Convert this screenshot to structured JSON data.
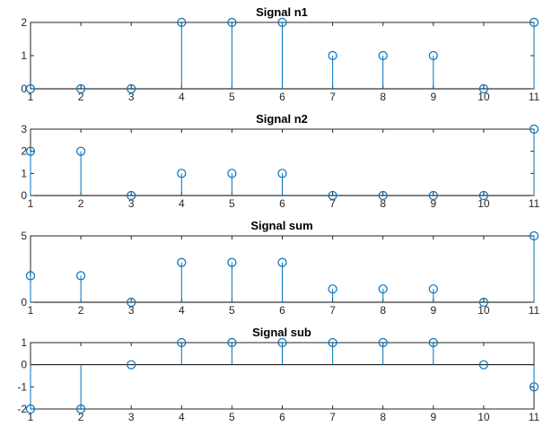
{
  "chart_data": [
    {
      "type": "stem",
      "title": "Signal n1",
      "x": [
        1,
        2,
        3,
        4,
        5,
        6,
        7,
        8,
        9,
        10,
        11
      ],
      "values": [
        0,
        0,
        0,
        2,
        2,
        2,
        1,
        1,
        1,
        0,
        2
      ],
      "xlim": [
        1,
        11
      ],
      "ylim": [
        0,
        2
      ],
      "xticks": [
        1,
        2,
        3,
        4,
        5,
        6,
        7,
        8,
        9,
        10,
        11
      ],
      "yticks": [
        0,
        1,
        2
      ],
      "color": "#0072BD"
    },
    {
      "type": "stem",
      "title": "Signal n2",
      "x": [
        1,
        2,
        3,
        4,
        5,
        6,
        7,
        8,
        9,
        10,
        11
      ],
      "values": [
        2,
        2,
        0,
        1,
        1,
        1,
        0,
        0,
        0,
        0,
        3
      ],
      "xlim": [
        1,
        11
      ],
      "ylim": [
        0,
        3
      ],
      "xticks": [
        1,
        2,
        3,
        4,
        5,
        6,
        7,
        8,
        9,
        10,
        11
      ],
      "yticks": [
        0,
        1,
        2,
        3
      ],
      "color": "#0072BD"
    },
    {
      "type": "stem",
      "title": "Signal sum",
      "x": [
        1,
        2,
        3,
        4,
        5,
        6,
        7,
        8,
        9,
        10,
        11
      ],
      "values": [
        2,
        2,
        0,
        3,
        3,
        3,
        1,
        1,
        1,
        0,
        5
      ],
      "xlim": [
        1,
        11
      ],
      "ylim": [
        0,
        5
      ],
      "xticks": [
        1,
        2,
        3,
        4,
        5,
        6,
        7,
        8,
        9,
        10,
        11
      ],
      "yticks": [
        0,
        5
      ],
      "color": "#0072BD"
    },
    {
      "type": "stem",
      "title": "Signal sub",
      "x": [
        1,
        2,
        3,
        4,
        5,
        6,
        7,
        8,
        9,
        10,
        11
      ],
      "values": [
        -2,
        -2,
        0,
        1,
        1,
        1,
        1,
        1,
        1,
        0,
        -1
      ],
      "xlim": [
        1,
        11
      ],
      "ylim": [
        -2,
        1
      ],
      "xticks": [
        1,
        2,
        3,
        4,
        5,
        6,
        7,
        8,
        9,
        10,
        11
      ],
      "yticks": [
        -2,
        -1,
        0,
        1
      ],
      "color": "#0072BD"
    }
  ]
}
